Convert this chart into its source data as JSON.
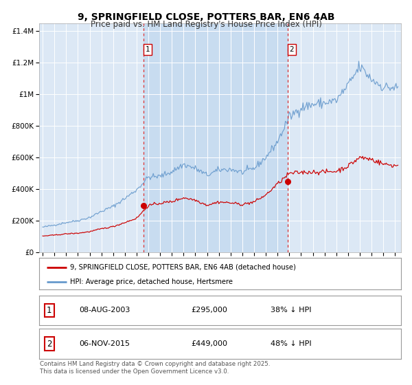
{
  "title": "9, SPRINGFIELD CLOSE, POTTERS BAR, EN6 4AB",
  "subtitle": "Price paid vs. HM Land Registry's House Price Index (HPI)",
  "title_fontsize": 10,
  "subtitle_fontsize": 8.5,
  "background_color": "#ffffff",
  "plot_bg_color": "#dce8f5",
  "shade_color": "#c8dcf0",
  "grid_color": "#ffffff",
  "legend_label_red": "9, SPRINGFIELD CLOSE, POTTERS BAR, EN6 4AB (detached house)",
  "legend_label_blue": "HPI: Average price, detached house, Hertsmere",
  "sale1_date": "08-AUG-2003",
  "sale1_price": "£295,000",
  "sale1_hpi": "38% ↓ HPI",
  "sale1_x": 2003.6,
  "sale1_y_red": 295000,
  "sale2_date": "06-NOV-2015",
  "sale2_price": "£449,000",
  "sale2_hpi": "48% ↓ HPI",
  "sale2_x": 2015.85,
  "sale2_y_red": 449000,
  "vline1_x": 2003.6,
  "vline2_x": 2015.85,
  "ylim": [
    0,
    1450000
  ],
  "xlim_start": 1994.7,
  "xlim_end": 2025.5,
  "yticks": [
    0,
    200000,
    400000,
    600000,
    800000,
    1000000,
    1200000,
    1400000
  ],
  "ytick_labels": [
    "£0",
    "£200K",
    "£400K",
    "£600K",
    "£800K",
    "£1M",
    "£1.2M",
    "£1.4M"
  ],
  "xticks": [
    1995,
    1996,
    1997,
    1998,
    1999,
    2000,
    2001,
    2002,
    2003,
    2004,
    2005,
    2006,
    2007,
    2008,
    2009,
    2010,
    2011,
    2012,
    2013,
    2014,
    2015,
    2016,
    2017,
    2018,
    2019,
    2020,
    2021,
    2022,
    2023,
    2024,
    2025
  ],
  "red_color": "#cc0000",
  "blue_color": "#6699cc",
  "vline_color": "#dd3333",
  "copyright_text": "Contains HM Land Registry data © Crown copyright and database right 2025.\nThis data is licensed under the Open Government Licence v3.0."
}
